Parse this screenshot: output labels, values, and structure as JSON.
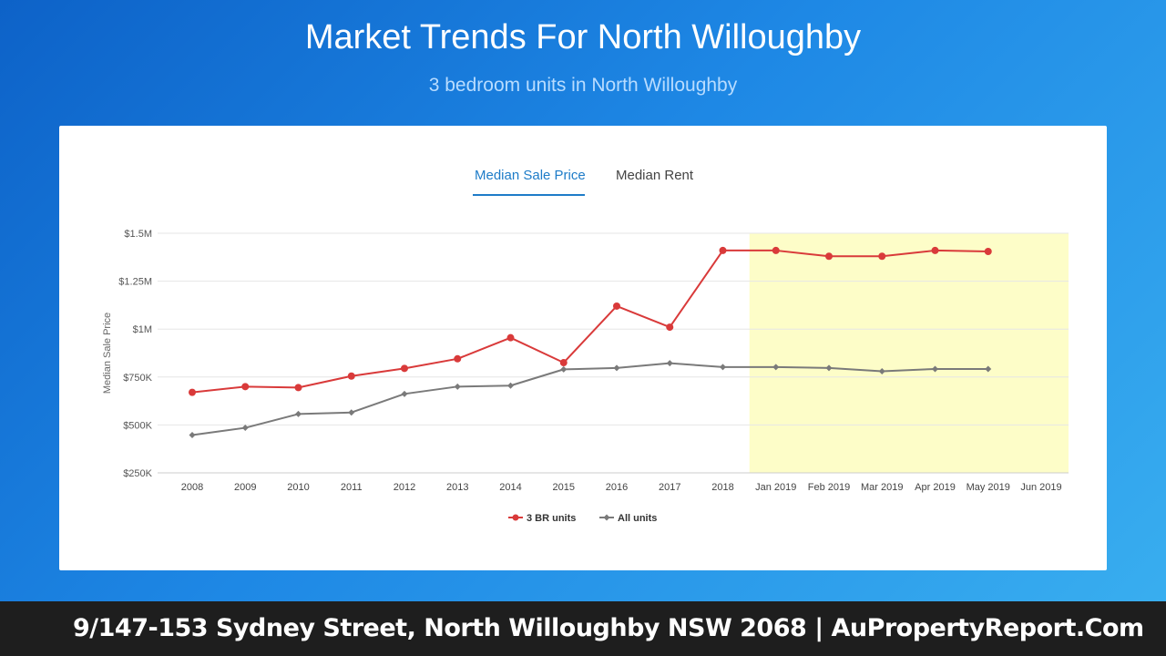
{
  "header": {
    "title": "Market Trends For North Willoughby",
    "subtitle": "3 bedroom units in North Willoughby"
  },
  "tabs": [
    {
      "label": "Median Sale Price",
      "active": true
    },
    {
      "label": "Median Rent",
      "active": false
    }
  ],
  "chart_data": {
    "type": "line",
    "ylabel": "Median Sale Price",
    "xlabel": "",
    "ylim": [
      250000,
      1500000
    ],
    "y_ticks": [
      {
        "value": 250000,
        "label": "$250K"
      },
      {
        "value": 500000,
        "label": "$500K"
      },
      {
        "value": 750000,
        "label": "$750K"
      },
      {
        "value": 1000000,
        "label": "$1M"
      },
      {
        "value": 1250000,
        "label": "$1.25M"
      },
      {
        "value": 1500000,
        "label": "$1.5M"
      }
    ],
    "categories": [
      "2008",
      "2009",
      "2010",
      "2011",
      "2012",
      "2013",
      "2014",
      "2015",
      "2016",
      "2017",
      "2018",
      "Jan 2019",
      "Feb 2019",
      "Mar 2019",
      "Apr 2019",
      "May 2019",
      "Jun 2019"
    ],
    "highlight_range": [
      "Jan 2019",
      "Jun 2019"
    ],
    "highlight_color": "#fdfdc8",
    "grid": true,
    "legend_position": "bottom",
    "series": [
      {
        "name": "3 BR units",
        "color": "#d93a3a",
        "marker": "circle",
        "values": [
          670000,
          700000,
          695000,
          755000,
          795000,
          845000,
          955000,
          825000,
          1120000,
          1010000,
          1410000,
          1410000,
          1380000,
          1380000,
          1410000,
          1405000,
          null
        ]
      },
      {
        "name": "All units",
        "color": "#7a7a7a",
        "marker": "diamond",
        "values": [
          447000,
          485000,
          557000,
          565000,
          662000,
          700000,
          705000,
          790000,
          797000,
          822000,
          802000,
          802000,
          797000,
          780000,
          792000,
          792000,
          null
        ]
      }
    ]
  },
  "footer": {
    "text": "9/147-153 Sydney Street, North Willoughby NSW 2068 | AuPropertyReport.Com"
  }
}
